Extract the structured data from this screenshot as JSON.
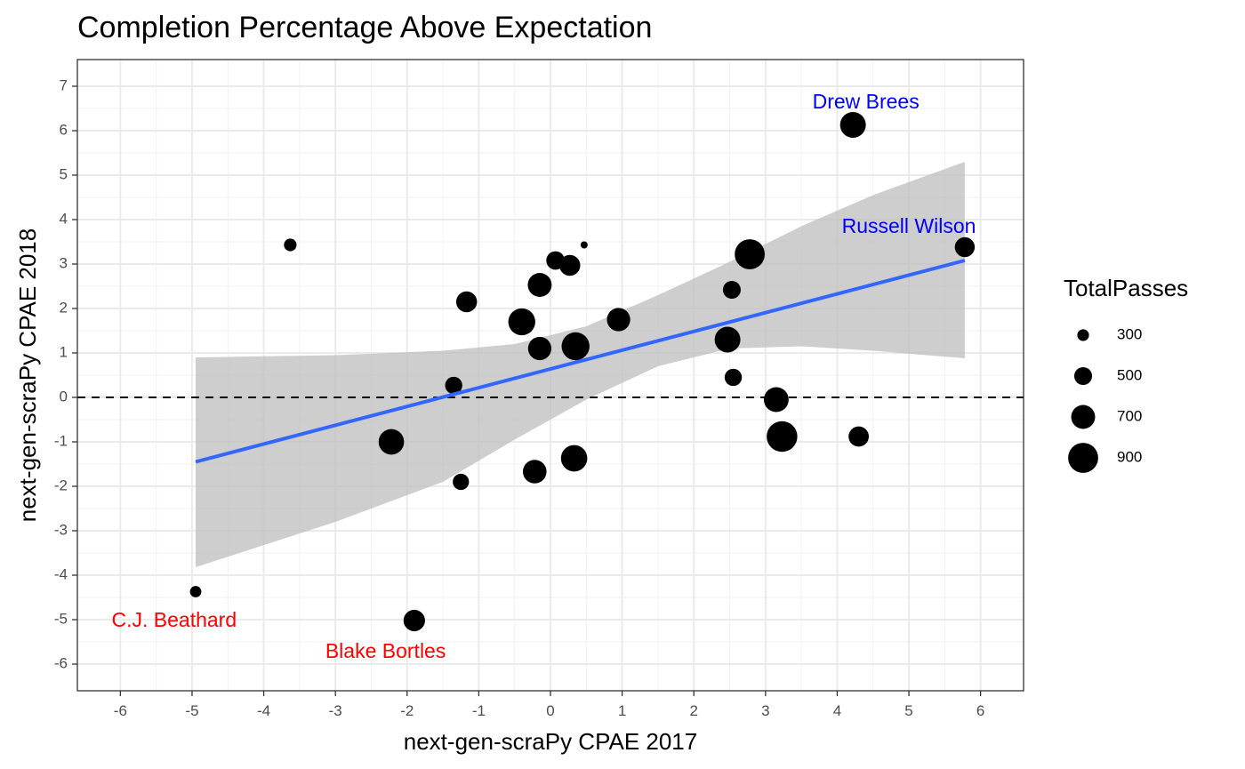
{
  "chart_data": {
    "type": "scatter",
    "title": "Completion Percentage Above Expectation",
    "xlabel": "next-gen-scraPy CPAE 2017",
    "ylabel": "next-gen-scraPy CPAE 2018",
    "xlim": [
      -6.6,
      6.6
    ],
    "ylim": [
      -6.6,
      7.6
    ],
    "x_ticks": [
      -6,
      -5,
      -4,
      -3,
      -2,
      -1,
      0,
      1,
      2,
      3,
      4,
      5,
      6
    ],
    "y_ticks": [
      -6,
      -5,
      -4,
      -3,
      -2,
      -1,
      0,
      1,
      2,
      3,
      4,
      5,
      6,
      7
    ],
    "grid": true,
    "hline": {
      "y": 0,
      "style": "dashed"
    },
    "size_legend": {
      "title": "TotalPasses",
      "entries": [
        300,
        500,
        700,
        900
      ],
      "position": "right"
    },
    "points": [
      {
        "x": -3.63,
        "y": 3.43,
        "passes": 330
      },
      {
        "x": 0.47,
        "y": 3.43,
        "passes": 150
      },
      {
        "x": 0.07,
        "y": 3.08,
        "passes": 520
      },
      {
        "x": 0.27,
        "y": 2.97,
        "passes": 600
      },
      {
        "x": -0.15,
        "y": 2.53,
        "passes": 700
      },
      {
        "x": -1.17,
        "y": 2.15,
        "passes": 600
      },
      {
        "x": -0.4,
        "y": 1.7,
        "passes": 800
      },
      {
        "x": -0.15,
        "y": 1.1,
        "passes": 680
      },
      {
        "x": 0.35,
        "y": 1.15,
        "passes": 830
      },
      {
        "x": 0.95,
        "y": 1.75,
        "passes": 680
      },
      {
        "x": -1.35,
        "y": 0.27,
        "passes": 480
      },
      {
        "x": -2.22,
        "y": -1.0,
        "passes": 750
      },
      {
        "x": -1.25,
        "y": -1.9,
        "passes": 450
      },
      {
        "x": -0.22,
        "y": -1.67,
        "passes": 690
      },
      {
        "x": 0.33,
        "y": -1.37,
        "passes": 780
      },
      {
        "x": -4.95,
        "y": -4.37,
        "passes": 290
      },
      {
        "x": -1.9,
        "y": -5.02,
        "passes": 620
      },
      {
        "x": 4.22,
        "y": 6.13,
        "passes": 760
      },
      {
        "x": 2.78,
        "y": 3.22,
        "passes": 900
      },
      {
        "x": 5.78,
        "y": 3.38,
        "passes": 570
      },
      {
        "x": 2.53,
        "y": 2.42,
        "passes": 500
      },
      {
        "x": 2.47,
        "y": 1.3,
        "passes": 760
      },
      {
        "x": 2.55,
        "y": 0.45,
        "passes": 480
      },
      {
        "x": 3.15,
        "y": -0.05,
        "passes": 730
      },
      {
        "x": 3.23,
        "y": -0.88,
        "passes": 920
      },
      {
        "x": 4.3,
        "y": -0.88,
        "passes": 580
      }
    ],
    "regression": {
      "x0": -4.95,
      "y0": -1.45,
      "x1": 5.78,
      "y1": 3.08,
      "color": "#3366FF"
    },
    "confidence_band": {
      "color": "#BDBDBD",
      "upper": [
        [
          -4.95,
          0.9
        ],
        [
          -3,
          0.95
        ],
        [
          -1.5,
          1.05
        ],
        [
          -0.5,
          1.2
        ],
        [
          0.5,
          1.6
        ],
        [
          1.5,
          2.3
        ],
        [
          2.5,
          3.05
        ],
        [
          3.5,
          3.85
        ],
        [
          4.5,
          4.55
        ],
        [
          5.78,
          5.3
        ]
      ],
      "lower": [
        [
          5.78,
          0.88
        ],
        [
          4.5,
          1.05
        ],
        [
          3.5,
          1.15
        ],
        [
          2.5,
          1.1
        ],
        [
          1.5,
          0.7
        ],
        [
          0.5,
          -0.05
        ],
        [
          -0.5,
          -0.95
        ],
        [
          -1.5,
          -1.9
        ],
        [
          -3,
          -2.8
        ],
        [
          -4.95,
          -3.82
        ]
      ]
    },
    "annotations": [
      {
        "label": "Drew Brees",
        "x": 4.4,
        "y": 6.62,
        "color": "#0000FF"
      },
      {
        "label": "Russell Wilson",
        "x": 5.0,
        "y": 3.82,
        "color": "#0000FF"
      },
      {
        "label": "C.J. Beathard",
        "x": -5.25,
        "y": -5.04,
        "color": "#FF0000"
      },
      {
        "label": "Blake Bortles",
        "x": -2.3,
        "y": -5.74,
        "color": "#FF0000"
      }
    ]
  }
}
